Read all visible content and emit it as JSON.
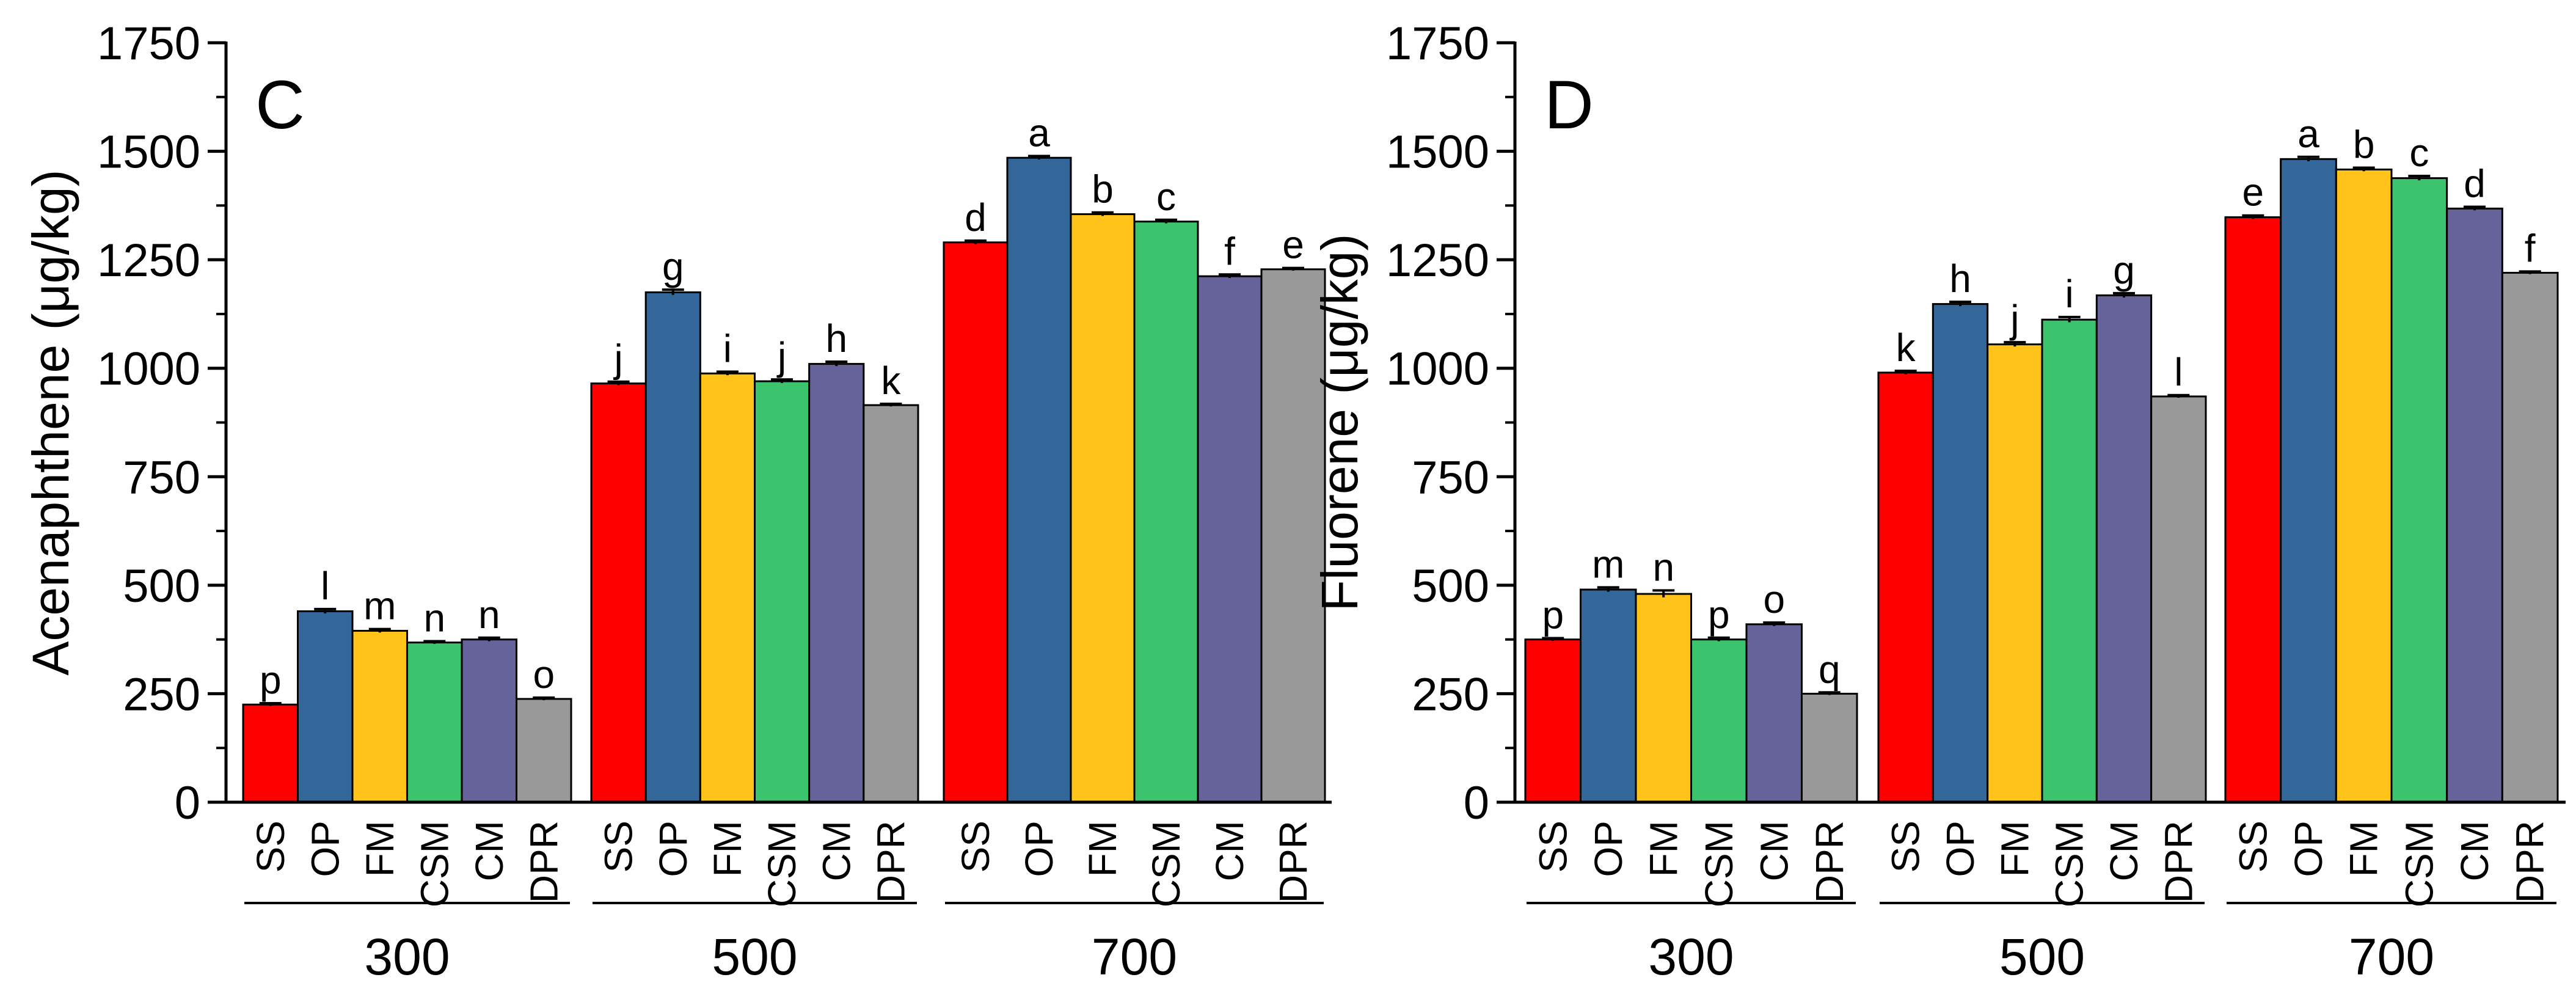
{
  "chart_data": [
    {
      "type": "bar",
      "panel": "C",
      "title": "",
      "xlabel": "",
      "ylabel": "Acenaphthene (μg/kg)",
      "ylim": [
        0,
        1750
      ],
      "yticks": [
        "0",
        "250",
        "500",
        "750",
        "1000",
        "1250",
        "1500",
        "1750"
      ],
      "groups": [
        "300",
        "500",
        "700"
      ],
      "categories": [
        "SS",
        "OP",
        "FM",
        "CSM",
        "CM",
        "DPR"
      ],
      "colors": [
        "#ff0000",
        "#336699",
        "#ffc31a",
        "#3cc36d",
        "#66639a",
        "#999999"
      ],
      "values": [
        [
          225,
          440,
          395,
          368,
          375,
          238
        ],
        [
          965,
          1175,
          988,
          970,
          1010,
          915
        ],
        [
          1290,
          1485,
          1355,
          1338,
          1212,
          1228
        ]
      ],
      "errors": [
        [
          3,
          5,
          4,
          3,
          4,
          3
        ],
        [
          4,
          6,
          4,
          4,
          5,
          3
        ],
        [
          4,
          4,
          4,
          4,
          4,
          3
        ]
      ],
      "significance": [
        [
          "p",
          "l",
          "m",
          "n",
          "n",
          "o"
        ],
        [
          "j",
          "g",
          "i",
          "j",
          "h",
          "k"
        ],
        [
          "d",
          "a",
          "b",
          "c",
          "f",
          "e"
        ]
      ]
    },
    {
      "type": "bar",
      "panel": "D",
      "title": "",
      "xlabel": "",
      "ylabel": "Fluorene (μg/kg)",
      "ylim": [
        0,
        1750
      ],
      "yticks": [
        "0",
        "250",
        "500",
        "750",
        "1000",
        "1250",
        "1500",
        "1750"
      ],
      "groups": [
        "300",
        "500",
        "700"
      ],
      "categories": [
        "SS",
        "OP",
        "FM",
        "CSM",
        "CM",
        "DPR"
      ],
      "colors": [
        "#ff0000",
        "#336699",
        "#ffc31a",
        "#3cc36d",
        "#66639a",
        "#999999"
      ],
      "values": [
        [
          375,
          490,
          480,
          375,
          410,
          250
        ],
        [
          990,
          1148,
          1055,
          1112,
          1168,
          935
        ],
        [
          1348,
          1482,
          1458,
          1438,
          1368,
          1220
        ]
      ],
      "errors": [
        [
          3,
          5,
          8,
          4,
          4,
          3
        ],
        [
          4,
          5,
          5,
          6,
          5,
          3
        ],
        [
          4,
          5,
          4,
          5,
          4,
          3
        ]
      ],
      "significance": [
        [
          "p",
          "m",
          "n",
          "p",
          "o",
          "q"
        ],
        [
          "k",
          "h",
          "j",
          "i",
          "g",
          "l"
        ],
        [
          "e",
          "a",
          "b",
          "c",
          "d",
          "f"
        ]
      ]
    }
  ]
}
